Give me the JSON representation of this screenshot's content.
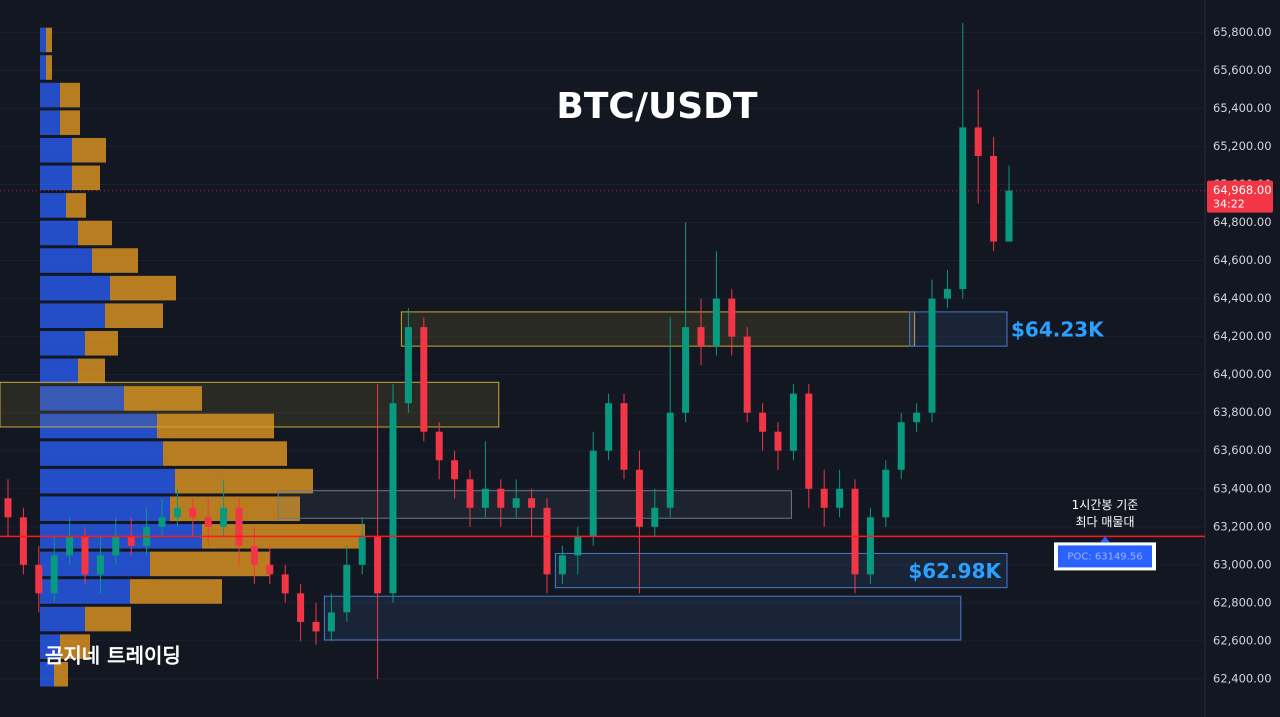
{
  "chart_data": {
    "type": "candlestick",
    "title": "BTC/USDT",
    "watermark": "곰지네 트레이딩",
    "ylim": [
      62200,
      65970
    ],
    "yticks": [
      {
        "value": 62400,
        "label": "62,400.00"
      },
      {
        "value": 62600,
        "label": "62,600.00"
      },
      {
        "value": 62800,
        "label": "62,800.00"
      },
      {
        "value": 63000,
        "label": "63,000.00"
      },
      {
        "value": 63200,
        "label": "63,200.00"
      },
      {
        "value": 63400,
        "label": "63,400.00"
      },
      {
        "value": 63600,
        "label": "63,600.00"
      },
      {
        "value": 63800,
        "label": "63,800.00"
      },
      {
        "value": 64000,
        "label": "64,000.00"
      },
      {
        "value": 64200,
        "label": "64,200.00"
      },
      {
        "value": 64400,
        "label": "64,400.00"
      },
      {
        "value": 64600,
        "label": "64,600.00"
      },
      {
        "value": 64800,
        "label": "64,800.00"
      },
      {
        "value": 65000,
        "label": "65,000.00"
      },
      {
        "value": 65200,
        "label": "65,200.00"
      },
      {
        "value": 65400,
        "label": "65,400.00"
      },
      {
        "value": 65600,
        "label": "65,600.00"
      },
      {
        "value": 65800,
        "label": "65,800.00"
      }
    ],
    "up_color": "#089981",
    "down_color": "#f23645",
    "open": [
      63350,
      63250,
      63000,
      62850,
      63050,
      63150,
      62950,
      63050,
      63150,
      63100,
      63200,
      63250,
      63300,
      63250,
      63200,
      63300,
      63100,
      63000,
      62950,
      62850,
      62700,
      62650,
      62750,
      63000,
      63150,
      62850,
      63850,
      64250,
      63700,
      63550,
      63450,
      63300,
      63400,
      63300,
      63350,
      63300,
      62950,
      63050,
      63150,
      63600,
      63850,
      63500,
      63200,
      63300,
      63800,
      64250,
      64150,
      64400,
      64200,
      63800,
      63700,
      63600,
      63900,
      63400,
      63300,
      63400,
      62950,
      63250,
      63500,
      63750,
      63800,
      64400,
      64450,
      65300,
      65150,
      64700
    ],
    "high": [
      63450,
      63300,
      63100,
      63150,
      63250,
      63200,
      63150,
      63250,
      63250,
      63300,
      63350,
      63400,
      63350,
      63350,
      63450,
      63350,
      63200,
      63100,
      63000,
      62900,
      62800,
      62850,
      63100,
      63250,
      63950,
      63950,
      64350,
      64300,
      63750,
      63600,
      63500,
      63650,
      63450,
      63450,
      63400,
      63350,
      63100,
      63200,
      63700,
      63900,
      63900,
      63600,
      63400,
      64300,
      64800,
      64400,
      64650,
      64450,
      64250,
      63850,
      63750,
      63950,
      63950,
      63500,
      63500,
      63450,
      63300,
      63550,
      63800,
      63850,
      64500,
      64550,
      65850,
      65500,
      65250,
      65100
    ],
    "low": [
      63150,
      62950,
      62750,
      62800,
      63000,
      62900,
      62850,
      63000,
      63050,
      63050,
      63150,
      63200,
      63150,
      63100,
      63150,
      63000,
      62900,
      62900,
      62800,
      62600,
      62580,
      62600,
      62700,
      62950,
      62400,
      62800,
      63800,
      63650,
      63450,
      63350,
      63200,
      63250,
      63200,
      63250,
      63150,
      62850,
      62900,
      62950,
      63100,
      63550,
      63450,
      62850,
      63150,
      63250,
      63750,
      64050,
      64100,
      64100,
      63750,
      63600,
      63500,
      63550,
      63300,
      63200,
      63250,
      62850,
      62900,
      63200,
      63450,
      63700,
      63750,
      64350,
      64400,
      64900,
      64650,
      64700
    ],
    "close": [
      63250,
      63000,
      62850,
      63050,
      63150,
      62950,
      63050,
      63150,
      63100,
      63200,
      63250,
      63300,
      63250,
      63200,
      63300,
      63100,
      63000,
      62950,
      62850,
      62700,
      62650,
      62750,
      63000,
      63150,
      62850,
      63850,
      64250,
      63700,
      63550,
      63450,
      63300,
      63400,
      63300,
      63350,
      63300,
      62950,
      63050,
      63150,
      63600,
      63850,
      63500,
      63200,
      63300,
      63800,
      64250,
      64150,
      64400,
      64200,
      63800,
      63700,
      63600,
      63900,
      63400,
      63300,
      63400,
      62950,
      63250,
      63500,
      63750,
      63800,
      64400,
      64450,
      65300,
      65150,
      64700,
      64968
    ],
    "volume_profile": {
      "prices": [
        65760,
        65615,
        65470,
        65325,
        65180,
        65035,
        64890,
        64745,
        64600,
        64455,
        64310,
        64165,
        64020,
        63875,
        63730,
        63585,
        63440,
        63295,
        63150,
        63005,
        62860,
        62715,
        62570,
        62425
      ],
      "buy": [
        6,
        6,
        20,
        20,
        32,
        32,
        26,
        38,
        52,
        70,
        65,
        45,
        38,
        84,
        117,
        123,
        135,
        130,
        162,
        110,
        90,
        45,
        20,
        14
      ],
      "sell": [
        6,
        6,
        20,
        20,
        34,
        28,
        20,
        34,
        46,
        66,
        58,
        33,
        27,
        78,
        117,
        124,
        138,
        130,
        163,
        120,
        92,
        46,
        30,
        14
      ],
      "buy_color": "#2962ff",
      "sell_color": "#f0a020"
    },
    "zones": [
      {
        "top": 64330,
        "bottom": 64150,
        "from": 26,
        "to": 59,
        "color": "#c8a83a"
      },
      {
        "top": 64330,
        "bottom": 64150,
        "from": 59,
        "to": 65,
        "color": "#4a7bc8",
        "label": "$64.23K"
      },
      {
        "top": 63960,
        "bottom": 63725,
        "from": 0,
        "to": 32,
        "color": "#c8a83a"
      },
      {
        "top": 63390,
        "bottom": 63245,
        "from": 18,
        "to": 51,
        "color": "#6a7a8a"
      },
      {
        "top": 63060,
        "bottom": 62880,
        "from": 36,
        "to": 65,
        "color": "#4a7bc8",
        "label": "$62.98K"
      },
      {
        "top": 62835,
        "bottom": 62605,
        "from": 21,
        "to": 62,
        "color": "#4a7bc8"
      }
    ],
    "poc": {
      "value": 63149.56,
      "label": "POC: 63149.56",
      "color": "#ff1a1a"
    },
    "annotation": [
      "1시간봉 기준",
      "최다 매물대"
    ],
    "last_price": {
      "value": 64968,
      "label": "64,968.00"
    },
    "countdown": "34:22"
  }
}
